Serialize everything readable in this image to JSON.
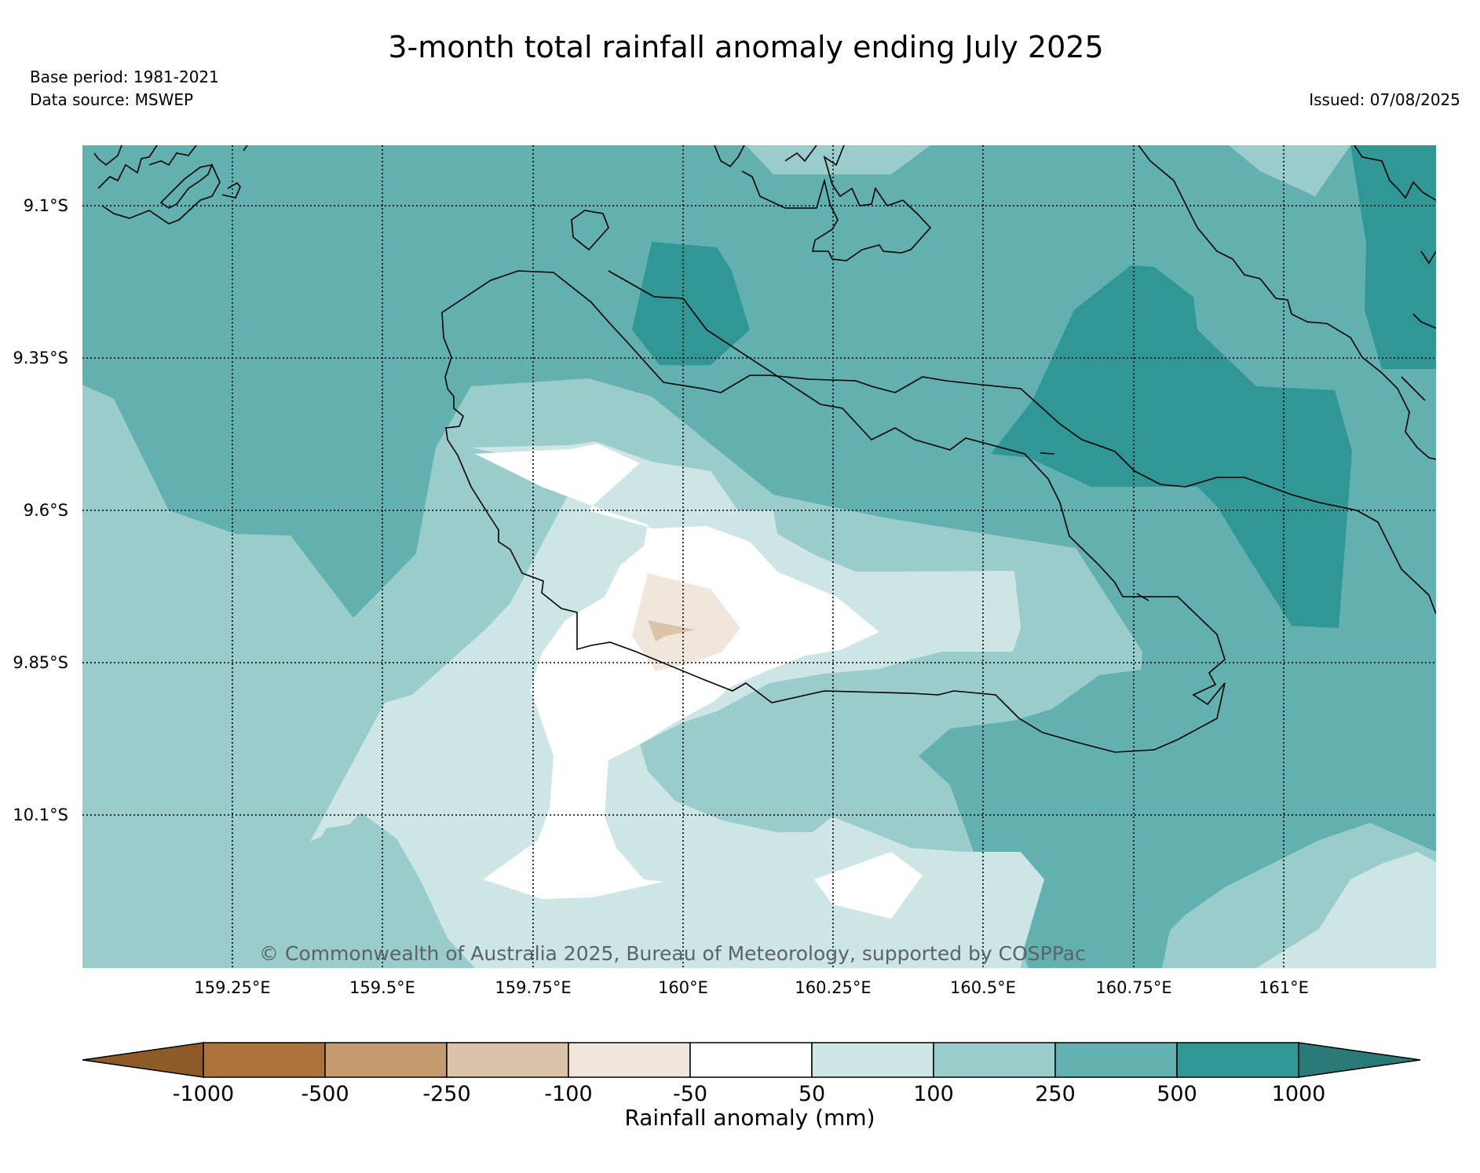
{
  "title": "3-month total rainfall anomaly ending July 2025",
  "base_period": "Base period: 1981-2021",
  "data_source": "Data source: MSWEP",
  "issued": "Issued: 07/08/2025",
  "copyright": "© Commonwealth of Australia 2025, Bureau of Meteorology, supported by COSPPac",
  "lat_labels": [
    "9.1°S",
    "9.35°S",
    "9.6°S",
    "9.85°S",
    "10.1°S"
  ],
  "lon_labels": [
    "159.25°E",
    "159.5°E",
    "159.75°E",
    "160°E",
    "160.25°E",
    "160.5°E",
    "160.75°E",
    "161°E"
  ],
  "colorbar": {
    "title": "Rainfall anomaly (mm)",
    "tick_labels": [
      "-1000",
      "-500",
      "-250",
      "-100",
      "-50",
      "50",
      "100",
      "250",
      "500",
      "1000"
    ],
    "colors": [
      "#8e5a25",
      "#ab7239",
      "#c49a6e",
      "#dbc3a9",
      "#f1e6dc",
      "#ffffff",
      "#cde5e4",
      "#9acccc",
      "#63b0b0",
      "#309795",
      "#2a7a79"
    ]
  },
  "map": {
    "legend_level_colors": {
      "above_50": "#cde5e4",
      "above_100": "#9acccc",
      "above_250": "#63b0b0",
      "above_500": "#309795",
      "near_zero": "#ffffff",
      "below_minus_50": "#f1e6dc",
      "below_minus_100": "#dbc3a9"
    },
    "gridlines": "dotted",
    "coastline_color": "#000000"
  }
}
